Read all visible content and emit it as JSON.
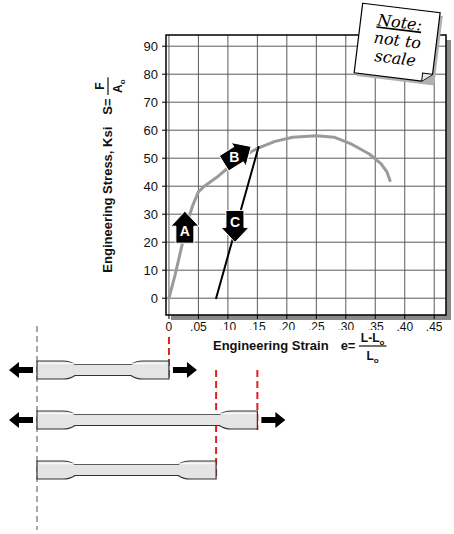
{
  "chart_data": {
    "type": "line",
    "note": [
      "Note:",
      "not to",
      "scale"
    ],
    "y_label": {
      "text": "Engineering Stress, Ksi",
      "formula": {
        "prefix": "S=",
        "numerator": "F",
        "denominator": "A",
        "denominator_sub": "o"
      }
    },
    "x_label": {
      "text": "Engineering Strain",
      "formula": {
        "prefix": "e=",
        "numerator": "L-L",
        "numerator_sub": "o",
        "denominator": "L",
        "denominator_sub": "o"
      }
    },
    "xlim": [
      -0.005,
      0.47
    ],
    "ylim": [
      -6,
      94
    ],
    "xticks": [
      0,
      {
        "value": 0.05,
        "label": ".05"
      },
      {
        "value": 0.1,
        "label": ".10"
      },
      {
        "value": 0.15,
        "label": ".15"
      },
      {
        "value": 0.2,
        "label": ".20"
      },
      {
        "value": 0.25,
        "label": ".25"
      },
      {
        "value": 0.3,
        "label": ".30"
      },
      {
        "value": 0.35,
        "label": ".35"
      },
      {
        "value": 0.4,
        "label": ".40"
      },
      {
        "value": 0.45,
        "label": ".45"
      }
    ],
    "yticks": [
      0,
      10,
      20,
      30,
      40,
      50,
      60,
      70,
      80,
      90
    ],
    "grid": true,
    "series": [
      {
        "color": "#9a9a9a",
        "x": [
          0,
          0.01,
          0.02,
          0.03,
          0.04,
          0.05,
          0.06,
          0.08,
          0.1,
          0.12,
          0.15,
          0.18,
          0.21,
          0.25,
          0.28,
          0.31,
          0.34,
          0.36,
          0.37,
          0.375
        ],
        "values": [
          0,
          8,
          17,
          26,
          33,
          38,
          40,
          43,
          46.5,
          50,
          53.5,
          56,
          57.5,
          58,
          57.5,
          55,
          51.5,
          48,
          45,
          42
        ]
      },
      {
        "color": "#000000",
        "x": [
          0.08,
          0.152
        ],
        "values": [
          0,
          54
        ]
      }
    ],
    "annotations": [
      {
        "text": "A",
        "x": 0.027,
        "y": 25
      },
      {
        "text": "B",
        "x": 0.115,
        "y": 51
      },
      {
        "text": "C",
        "x": 0.112,
        "y": 26
      }
    ],
    "specimens": {
      "x": [
        0,
        0.15,
        0.08
      ],
      "color": "#e0201b"
    }
  }
}
